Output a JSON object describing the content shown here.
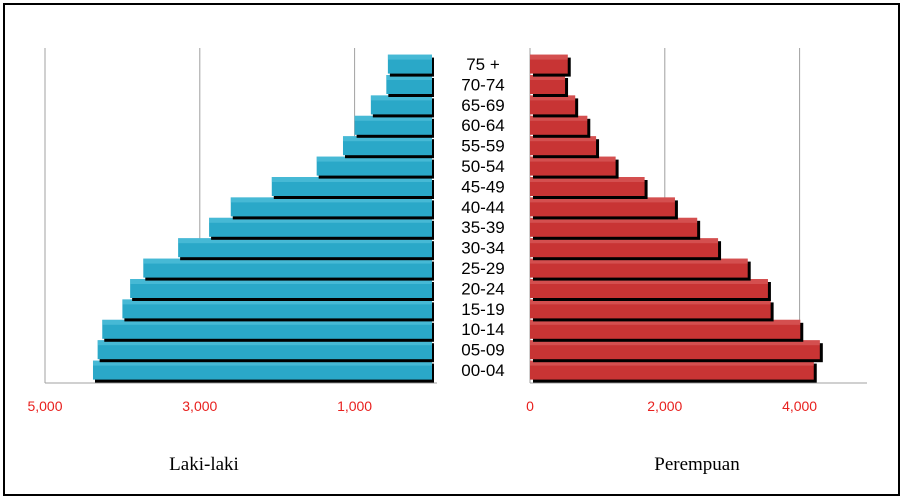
{
  "chart_data": [
    {
      "type": "bar",
      "orientation": "horizontal",
      "title": "Laki-laki",
      "categories": [
        "00-04",
        "05-09",
        "10-14",
        "15-19",
        "20-24",
        "25-29",
        "30-34",
        "35-39",
        "40-44",
        "45-49",
        "50-54",
        "55-59",
        "60-64",
        "65-69",
        "70-74",
        "75 +"
      ],
      "values": [
        4380,
        4320,
        4260,
        4000,
        3900,
        3730,
        3280,
        2880,
        2600,
        2070,
        1490,
        1150,
        1000,
        790,
        590,
        570
      ],
      "xlim": [
        5000,
        0
      ],
      "xticks": [
        "5,000",
        "3,000",
        "1,000"
      ],
      "bar_color": "#2aa8c8",
      "grid": true
    },
    {
      "type": "bar",
      "orientation": "horizontal",
      "title": "Perempuan",
      "categories": [
        "00-04",
        "05-09",
        "10-14",
        "15-19",
        "20-24",
        "25-29",
        "30-34",
        "35-39",
        "40-44",
        "45-49",
        "50-54",
        "55-59",
        "60-64",
        "65-69",
        "70-74",
        "75 +"
      ],
      "values": [
        4210,
        4300,
        4010,
        3570,
        3530,
        3230,
        2790,
        2480,
        2150,
        1700,
        1270,
        980,
        850,
        670,
        520,
        560
      ],
      "xlim": [
        0,
        5000
      ],
      "xticks": [
        "0",
        "2,000",
        "4,000"
      ],
      "bar_color": "#c83434",
      "grid": true
    }
  ]
}
